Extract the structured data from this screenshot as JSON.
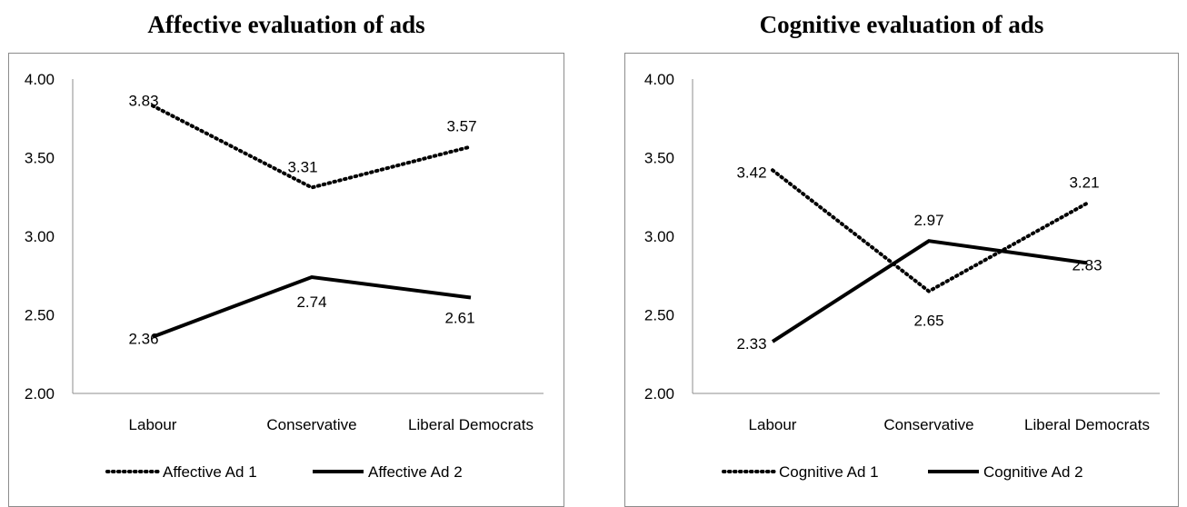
{
  "chart_data": [
    {
      "type": "line",
      "title": "Affective evaluation of ads",
      "categories": [
        "Labour",
        "Conservative",
        "Liberal Democrats"
      ],
      "ylim": [
        2.0,
        4.0
      ],
      "yticks": [
        "2.00",
        "2.50",
        "3.00",
        "3.50",
        "4.00"
      ],
      "grid": false,
      "legend_position": "bottom",
      "series": [
        {
          "name": "Affective Ad 1",
          "style": "dotted",
          "color": "#000000",
          "values": [
            3.83,
            3.31,
            3.57
          ],
          "labels": [
            "3.83",
            "3.31",
            "3.57"
          ]
        },
        {
          "name": "Affective Ad 2",
          "style": "solid",
          "color": "#000000",
          "values": [
            2.36,
            2.74,
            2.61
          ],
          "labels": [
            "2.36",
            "2.74",
            "2.61"
          ]
        }
      ]
    },
    {
      "type": "line",
      "title": "Cognitive evaluation of ads",
      "categories": [
        "Labour",
        "Conservative",
        "Liberal Democrats"
      ],
      "ylim": [
        2.0,
        4.0
      ],
      "yticks": [
        "2.00",
        "2.50",
        "3.00",
        "3.50",
        "4.00"
      ],
      "grid": false,
      "legend_position": "bottom",
      "series": [
        {
          "name": "Cognitive Ad 1",
          "style": "dotted",
          "color": "#000000",
          "values": [
            3.42,
            2.65,
            3.21
          ],
          "labels": [
            "3.42",
            "2.65",
            "3.21"
          ]
        },
        {
          "name": "Cognitive Ad 2",
          "style": "solid",
          "color": "#000000",
          "values": [
            2.33,
            2.97,
            2.83
          ],
          "labels": [
            "2.33",
            "2.97",
            "2.83"
          ]
        }
      ]
    }
  ]
}
